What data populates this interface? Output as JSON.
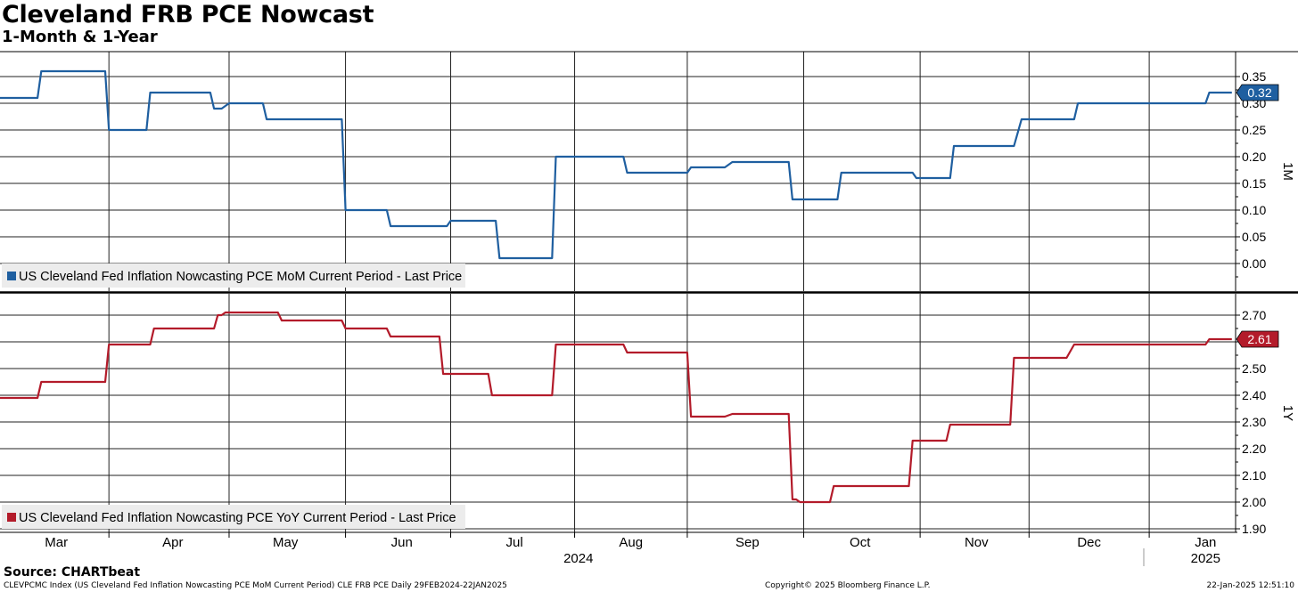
{
  "header": {
    "title": "Cleveland FRB PCE Nowcast",
    "subtitle": "1-Month & 1-Year"
  },
  "footer": {
    "source": "Source: CHARTbeat",
    "index_text": "CLEVPCMC Index (US Cleveland Fed Inflation Nowcasting PCE MoM Current Period) CLE FRB PCE  Daily 29FEB2024-22JAN2025",
    "copyright": "Copyright© 2025 Bloomberg Finance L.P.",
    "timestamp": "22-Jan-2025 12:51:10"
  },
  "colors": {
    "mom": "#1f5fa0",
    "yoy": "#b31b2a"
  },
  "chart_data": [
    {
      "type": "line",
      "panel": "top",
      "axis_label": "1M",
      "ylim": [
        -0.05,
        0.4
      ],
      "yticks": [
        "0.35",
        "0.30",
        "0.25",
        "0.20",
        "0.15",
        "0.10",
        "0.05",
        "0.00"
      ],
      "ytick_values": [
        0.35,
        0.3,
        0.25,
        0.2,
        0.15,
        0.1,
        0.05,
        0.0
      ],
      "last_value_label": "0.32",
      "grid": true,
      "legend_position": "bottom-left",
      "series": [
        {
          "name": "US Cleveland Fed Inflation Nowcasting PCE MoM Current Period - Last Price",
          "points": [
            [
              "2024-02-29",
              0.31
            ],
            [
              "2024-03-10",
              0.31
            ],
            [
              "2024-03-11",
              0.36
            ],
            [
              "2024-03-28",
              0.36
            ],
            [
              "2024-03-29",
              0.25
            ],
            [
              "2024-04-08",
              0.25
            ],
            [
              "2024-04-09",
              0.32
            ],
            [
              "2024-04-25",
              0.32
            ],
            [
              "2024-04-26",
              0.29
            ],
            [
              "2024-04-28",
              0.29
            ],
            [
              "2024-04-30",
              0.3
            ],
            [
              "2024-05-09",
              0.3
            ],
            [
              "2024-05-10",
              0.27
            ],
            [
              "2024-05-30",
              0.27
            ],
            [
              "2024-05-31",
              0.1
            ],
            [
              "2024-06-11",
              0.1
            ],
            [
              "2024-06-12",
              0.07
            ],
            [
              "2024-06-27",
              0.07
            ],
            [
              "2024-06-28",
              0.08
            ],
            [
              "2024-07-10",
              0.08
            ],
            [
              "2024-07-11",
              0.01
            ],
            [
              "2024-07-25",
              0.01
            ],
            [
              "2024-07-26",
              0.2
            ],
            [
              "2024-08-13",
              0.2
            ],
            [
              "2024-08-14",
              0.17
            ],
            [
              "2024-08-30",
              0.17
            ],
            [
              "2024-08-31",
              0.18
            ],
            [
              "2024-09-09",
              0.18
            ],
            [
              "2024-09-11",
              0.19
            ],
            [
              "2024-09-26",
              0.19
            ],
            [
              "2024-09-27",
              0.12
            ],
            [
              "2024-10-09",
              0.12
            ],
            [
              "2024-10-10",
              0.17
            ],
            [
              "2024-10-29",
              0.17
            ],
            [
              "2024-10-30",
              0.16
            ],
            [
              "2024-11-08",
              0.16
            ],
            [
              "2024-11-09",
              0.22
            ],
            [
              "2024-11-25",
              0.22
            ],
            [
              "2024-11-27",
              0.27
            ],
            [
              "2024-12-11",
              0.27
            ],
            [
              "2024-12-12",
              0.3
            ],
            [
              "2025-01-15",
              0.3
            ],
            [
              "2025-01-16",
              0.32
            ],
            [
              "2025-01-22",
              0.32
            ]
          ]
        }
      ]
    },
    {
      "type": "line",
      "panel": "bottom",
      "axis_label": "1Y",
      "ylim": [
        1.85,
        2.75
      ],
      "yticks": [
        "2.70",
        "2.60",
        "2.50",
        "2.40",
        "2.30",
        "2.20",
        "2.10",
        "2.00",
        "1.90"
      ],
      "ytick_values": [
        2.7,
        2.6,
        2.5,
        2.4,
        2.3,
        2.2,
        2.1,
        2.0,
        1.9
      ],
      "last_value_label": "2.61",
      "grid": true,
      "legend_position": "bottom-left",
      "series": [
        {
          "name": "US Cleveland Fed Inflation Nowcasting PCE YoY Current Period - Last Price",
          "points": [
            [
              "2024-02-29",
              2.39
            ],
            [
              "2024-03-10",
              2.39
            ],
            [
              "2024-03-11",
              2.45
            ],
            [
              "2024-03-28",
              2.45
            ],
            [
              "2024-03-29",
              2.59
            ],
            [
              "2024-04-09",
              2.59
            ],
            [
              "2024-04-10",
              2.65
            ],
            [
              "2024-04-26",
              2.65
            ],
            [
              "2024-04-27",
              2.7
            ],
            [
              "2024-04-28",
              2.7
            ],
            [
              "2024-04-29",
              2.71
            ],
            [
              "2024-05-13",
              2.71
            ],
            [
              "2024-05-14",
              2.68
            ],
            [
              "2024-05-30",
              2.68
            ],
            [
              "2024-05-31",
              2.65
            ],
            [
              "2024-06-11",
              2.65
            ],
            [
              "2024-06-12",
              2.62
            ],
            [
              "2024-06-25",
              2.62
            ],
            [
              "2024-06-26",
              2.48
            ],
            [
              "2024-07-08",
              2.48
            ],
            [
              "2024-07-09",
              2.4
            ],
            [
              "2024-07-25",
              2.4
            ],
            [
              "2024-07-26",
              2.59
            ],
            [
              "2024-08-13",
              2.59
            ],
            [
              "2024-08-14",
              2.56
            ],
            [
              "2024-08-30",
              2.56
            ],
            [
              "2024-08-31",
              2.32
            ],
            [
              "2024-09-09",
              2.32
            ],
            [
              "2024-09-11",
              2.33
            ],
            [
              "2024-09-26",
              2.33
            ],
            [
              "2024-09-27",
              2.01
            ],
            [
              "2024-09-28",
              2.01
            ],
            [
              "2024-09-29",
              2.0
            ],
            [
              "2024-10-07",
              2.0
            ],
            [
              "2024-10-08",
              2.06
            ],
            [
              "2024-10-28",
              2.06
            ],
            [
              "2024-10-29",
              2.23
            ],
            [
              "2024-11-07",
              2.23
            ],
            [
              "2024-11-08",
              2.29
            ],
            [
              "2024-11-24",
              2.29
            ],
            [
              "2024-11-25",
              2.54
            ],
            [
              "2024-12-09",
              2.54
            ],
            [
              "2024-12-11",
              2.59
            ],
            [
              "2025-01-15",
              2.59
            ],
            [
              "2025-01-16",
              2.61
            ],
            [
              "2025-01-22",
              2.61
            ]
          ]
        }
      ]
    }
  ],
  "x_axis": {
    "months": [
      {
        "label": "Mar",
        "date": "2024-03-15"
      },
      {
        "label": "Apr",
        "date": "2024-04-15"
      },
      {
        "label": "May",
        "date": "2024-05-15"
      },
      {
        "label": "Jun",
        "date": "2024-06-15"
      },
      {
        "label": "Jul",
        "date": "2024-07-15"
      },
      {
        "label": "Aug",
        "date": "2024-08-15"
      },
      {
        "label": "Sep",
        "date": "2024-09-15"
      },
      {
        "label": "Oct",
        "date": "2024-10-15"
      },
      {
        "label": "Nov",
        "date": "2024-11-15"
      },
      {
        "label": "Dec",
        "date": "2024-12-15"
      },
      {
        "label": "Jan",
        "date": "2025-01-15"
      }
    ],
    "years": [
      {
        "label": "2024",
        "date": "2024-08-01"
      },
      {
        "label": "2025",
        "date": "2025-01-15"
      }
    ],
    "gridlines": [
      "2024-03-29",
      "2024-04-30",
      "2024-05-31",
      "2024-06-28",
      "2024-07-31",
      "2024-08-30",
      "2024-09-30",
      "2024-10-31",
      "2024-11-29",
      "2024-12-31"
    ],
    "range": [
      "2024-02-29",
      "2025-01-23"
    ]
  }
}
